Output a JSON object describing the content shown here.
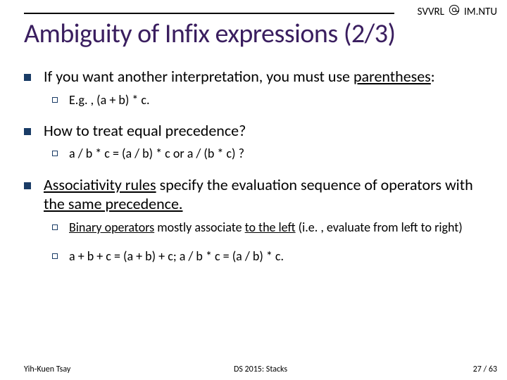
{
  "header": {
    "lab": "SVVRL",
    "org": "IM.NTU"
  },
  "title": "Ambiguity of Infix expressions (2/3)",
  "bullets": [
    {
      "level": 1,
      "segments": [
        {
          "t": "If you want another interpretation, you must use "
        },
        {
          "t": "parentheses",
          "u": true
        },
        {
          "t": ":"
        }
      ]
    },
    {
      "level": 2,
      "segments": [
        {
          "t": "E.g. , (a + b) * c."
        }
      ]
    },
    {
      "level": 1,
      "segments": [
        {
          "t": "How to treat equal precedence?"
        }
      ]
    },
    {
      "level": 2,
      "segments": [
        {
          "t": "a / b * c = (a / b) * c or a / (b * c) ?"
        }
      ]
    },
    {
      "level": 1,
      "segments": [
        {
          "t": "Associativity rules",
          "u": true
        },
        {
          "t": " specify the evaluation sequence of operators with "
        },
        {
          "t": "the same precedence.",
          "u": true
        }
      ]
    },
    {
      "level": 2,
      "segments": [
        {
          "t": "Binary operators",
          "u": true
        },
        {
          "t": " mostly associate "
        },
        {
          "t": "to the left",
          "u": true
        },
        {
          "t": " (i.e. , evaluate from left to right)"
        }
      ]
    },
    {
      "level": 2,
      "segments": [
        {
          "t": "a + b + c = (a + b) + c; a / b * c = (a / b) * c."
        }
      ]
    }
  ],
  "footer": {
    "left": "Yih-Kuen Tsay",
    "center": "DS 2015: Stacks",
    "right": "27 / 63"
  },
  "colors": {
    "title": "#3a1e5f",
    "bullet_square": "#1a3c66",
    "text": "#000000",
    "background": "#ffffff"
  },
  "fonts": {
    "title_size": 38,
    "b1_size": 22,
    "b2_size": 18,
    "footer_size": 12
  }
}
